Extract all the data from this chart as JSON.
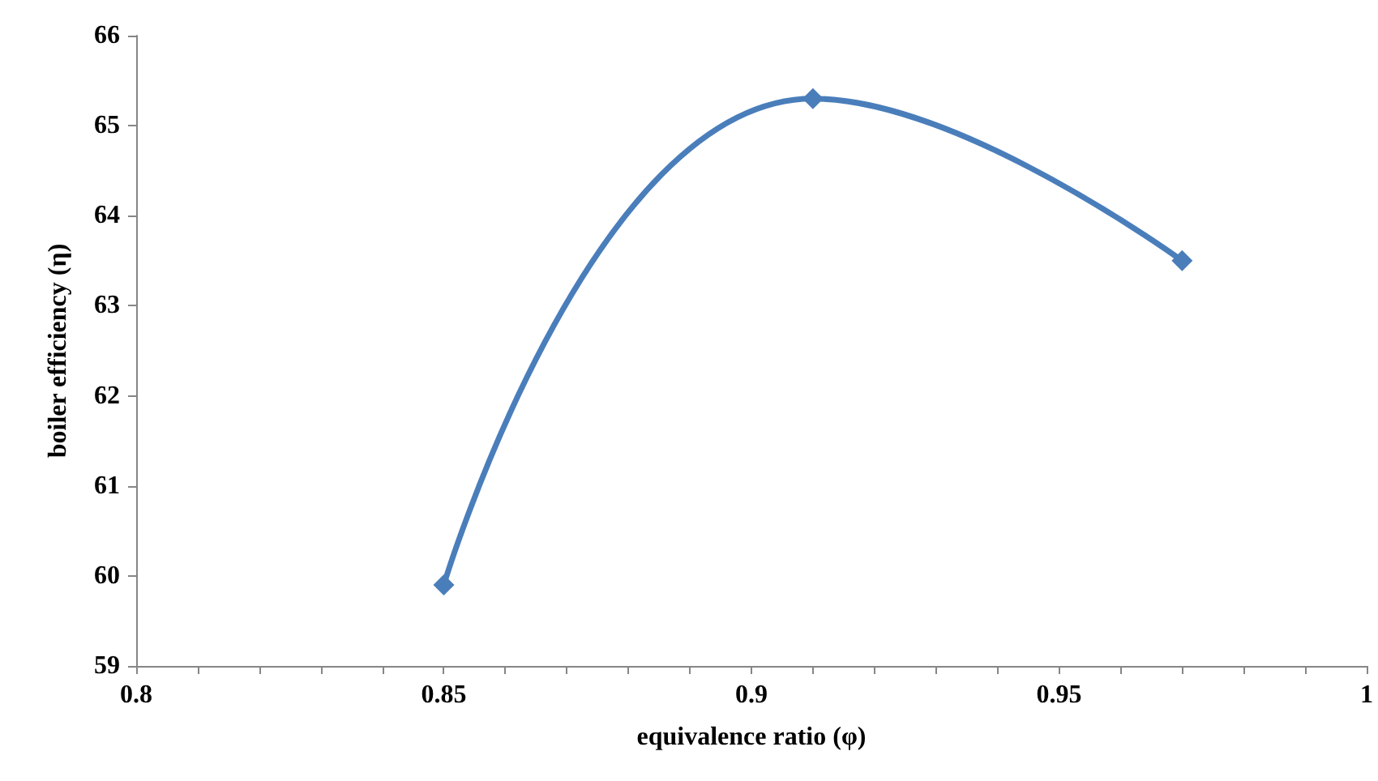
{
  "chart_data": {
    "type": "line",
    "xlabel": "equivalence ratio (φ)",
    "ylabel": "boiler efficiency (η)",
    "x": [
      0.85,
      0.91,
      0.97
    ],
    "series": [
      {
        "color": "#4a7ebb",
        "values": [
          59.9,
          65.3,
          63.5
        ]
      }
    ],
    "xlim": [
      0.8,
      1
    ],
    "xticks": [
      0.8,
      {
        "value": 0.81,
        "label": null
      },
      {
        "value": 0.82,
        "label": null
      },
      {
        "value": 0.83,
        "label": null
      },
      {
        "value": 0.84,
        "label": null
      },
      0.85,
      {
        "value": 0.86,
        "label": null
      },
      {
        "value": 0.87,
        "label": null
      },
      {
        "value": 0.88,
        "label": null
      },
      {
        "value": 0.89,
        "label": null
      },
      0.9,
      {
        "value": 0.91,
        "label": null
      },
      {
        "value": 0.92,
        "label": null
      },
      {
        "value": 0.93,
        "label": null
      },
      {
        "value": 0.94,
        "label": null
      },
      0.95,
      {
        "value": 0.96,
        "label": null
      },
      {
        "value": 0.97,
        "label": null
      },
      {
        "value": 0.98,
        "label": null
      },
      {
        "value": 0.99,
        "label": null
      },
      1
    ],
    "ylim": [
      59,
      66
    ],
    "yticks": [
      59,
      60,
      61,
      62,
      63,
      64,
      65,
      66
    ],
    "grid": false,
    "marker": "diamond",
    "line_style": "solid"
  }
}
